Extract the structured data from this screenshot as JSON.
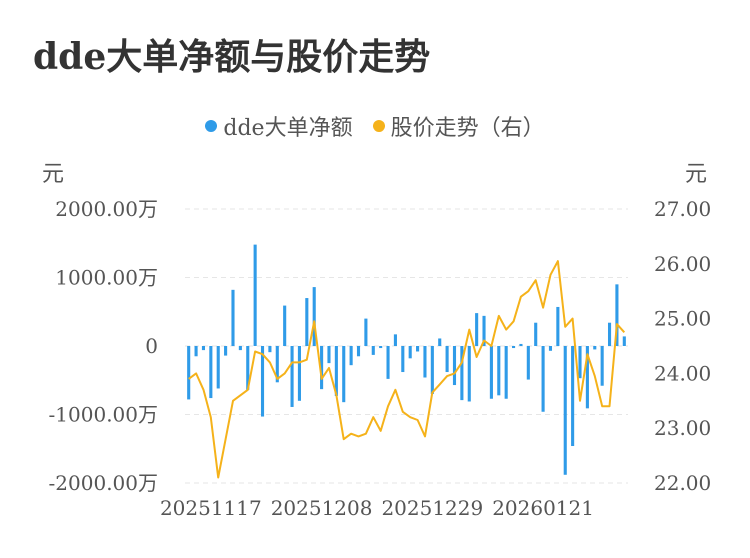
{
  "title": "dde大单净额与股价走势",
  "legend": {
    "items": [
      {
        "label": "dde大单净额",
        "color": "#2f9be8"
      },
      {
        "label": "股价走势（右）",
        "color": "#f5b21a"
      }
    ]
  },
  "axis_units": {
    "left": "元",
    "right": "元"
  },
  "chart_data": {
    "type": "bar+line",
    "left_axis": {
      "range": [
        -2000,
        2000
      ],
      "ticks": [
        2000,
        1000,
        0,
        -1000,
        -2000
      ],
      "tick_labels": [
        "2000.00万",
        "1000.00万",
        "0",
        "-1000.00万",
        "-2000.00万"
      ],
      "unit": "元"
    },
    "right_axis": {
      "range": [
        22,
        27
      ],
      "ticks": [
        27,
        26,
        25,
        24,
        23,
        22
      ],
      "tick_labels": [
        "27.00",
        "26.00",
        "25.00",
        "24.00",
        "23.00",
        "22.00"
      ],
      "unit": "元"
    },
    "x_tick_labels": [
      "20251117",
      "20251208",
      "20251229",
      "20260121"
    ],
    "x_tick_positions": [
      3,
      18,
      33,
      48
    ],
    "grid": true,
    "legend_position": "top-center",
    "series": [
      {
        "name": "dde大单净额",
        "type": "bar",
        "axis": "left",
        "color": "#2f9be8",
        "values": [
          -780,
          -150,
          -60,
          -760,
          -620,
          -140,
          820,
          -60,
          -640,
          1480,
          -1030,
          -90,
          -530,
          590,
          -890,
          -800,
          700,
          860,
          -630,
          -250,
          -730,
          -820,
          -280,
          -150,
          400,
          -130,
          -30,
          -480,
          170,
          -380,
          -180,
          -80,
          -460,
          -700,
          110,
          -380,
          -570,
          -790,
          -810,
          480,
          440,
          -770,
          -720,
          -770,
          -30,
          30,
          -490,
          340,
          -960,
          -70,
          570,
          -1880,
          -1460,
          -470,
          -910,
          -50,
          -580,
          340,
          900,
          140
        ]
      },
      {
        "name": "股价走势（右）",
        "type": "line",
        "axis": "right",
        "color": "#f5b21a",
        "values": [
          23.9,
          24.0,
          23.7,
          23.2,
          22.1,
          22.8,
          23.5,
          23.6,
          23.7,
          24.4,
          24.35,
          24.2,
          23.9,
          24.0,
          24.2,
          24.2,
          24.25,
          24.95,
          23.9,
          24.1,
          23.6,
          22.8,
          22.9,
          22.85,
          22.9,
          23.2,
          22.95,
          23.4,
          23.7,
          23.3,
          23.2,
          23.15,
          22.85,
          23.65,
          23.8,
          23.95,
          24.0,
          24.2,
          24.8,
          24.3,
          24.6,
          24.5,
          25.05,
          24.8,
          24.95,
          25.4,
          25.5,
          25.7,
          25.2,
          25.8,
          26.05,
          24.85,
          25.0,
          23.5,
          24.35,
          23.95,
          23.4,
          23.4,
          24.9,
          24.75
        ]
      }
    ]
  }
}
